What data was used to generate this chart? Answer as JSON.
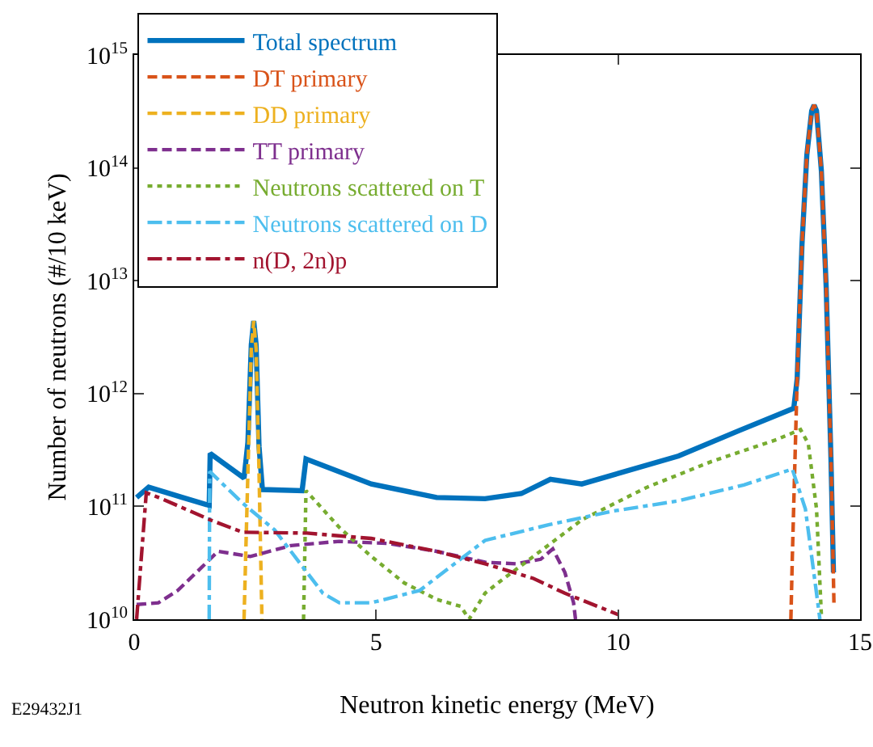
{
  "chart_data": {
    "type": "line",
    "xlabel": "Neutron kinetic energy (MeV)",
    "ylabel": "Number of neutrons (#/10 keV)",
    "xlim": [
      0,
      15
    ],
    "xticks": [
      0,
      5,
      10,
      15
    ],
    "ylim": [
      10000000000.0,
      1000000000000000.0
    ],
    "yticks": [
      {
        "value": 10000000000.0,
        "label": "10$^{10}$"
      },
      {
        "value": 100000000000.0,
        "label": "10$^{11}$"
      },
      {
        "value": 1000000000000.0,
        "label": "10$^{12}$"
      },
      {
        "value": 10000000000000.0,
        "label": "10$^{13}$"
      },
      {
        "value": 100000000000000.0,
        "label": "10$^{14}$"
      },
      {
        "value": 1000000000000000.0,
        "label": "10$^{15}$"
      }
    ],
    "log": "y",
    "grid": false,
    "legend": "top left",
    "marker": "none",
    "annotations": [
      "E29432J1"
    ],
    "series": [
      {
        "name": "Total spectrum",
        "color": "#0072bd",
        "line_style": "solid",
        "x": [
          0.05,
          0.3,
          1.0,
          1.55,
          1.57,
          2.27,
          2.35,
          2.42,
          2.47,
          2.52,
          2.58,
          2.65,
          3.47,
          3.55,
          4.9,
          6.25,
          7.25,
          8.0,
          8.6,
          9.25,
          11.25,
          12.5,
          13.63,
          13.7,
          13.8,
          13.9,
          14.0,
          14.05,
          14.1,
          14.2,
          14.3,
          14.4,
          14.45
        ],
        "values": [
          120000000000.0,
          148000000000.0,
          120000000000.0,
          102000000000.0,
          295000000000.0,
          178000000000.0,
          370000000000.0,
          2700000000000.0,
          4400000000000.0,
          2700000000000.0,
          340000000000.0,
          141000000000.0,
          138000000000.0,
          263000000000.0,
          158000000000.0,
          120000000000.0,
          117000000000.0,
          130000000000.0,
          174000000000.0,
          158000000000.0,
          280000000000.0,
          470000000000.0,
          740000000000.0,
          1350000000000.0,
          21000000000000.0,
          130000000000000.0,
          320000000000000.0,
          360000000000000.0,
          320000000000000.0,
          95000000000000.0,
          8700000000000.0,
          250000000000.0,
          26000000000.0
        ]
      },
      {
        "name": "DT primary",
        "color": "#d95319",
        "line_style": "dashed",
        "x": [
          13.57,
          13.6,
          13.7,
          13.8,
          13.9,
          14.0,
          14.05,
          14.1,
          14.2,
          14.3,
          14.4,
          14.46
        ],
        "values": [
          10000000000.0,
          35000000000.0,
          1350000000000.0,
          21000000000000.0,
          130000000000000.0,
          320000000000000.0,
          360000000000000.0,
          320000000000000.0,
          95000000000000.0,
          8700000000000.0,
          250000000000.0,
          14000000000.0
        ]
      },
      {
        "name": "DD primary",
        "color": "#edb120",
        "line_style": "dashed",
        "x": [
          2.27,
          2.35,
          2.42,
          2.47,
          2.52,
          2.58,
          2.64
        ],
        "values": [
          10000000000.0,
          200000000000.0,
          2500000000000.0,
          4400000000000.0,
          2500000000000.0,
          200000000000.0,
          10000000000.0
        ]
      },
      {
        "name": "TT primary",
        "color": "#7e2f8e",
        "line_style": "dashed",
        "x": [
          0.05,
          0.5,
          0.9,
          1.4,
          1.73,
          2.4,
          3.24,
          4.24,
          5.25,
          6.25,
          7.25,
          7.9,
          8.4,
          8.65,
          8.9,
          9.08,
          9.12
        ],
        "values": [
          13500000000.0,
          14000000000.0,
          18000000000.0,
          29000000000.0,
          40000000000.0,
          36000000000.0,
          45000000000.0,
          49000000000.0,
          47000000000.0,
          40000000000.0,
          32000000000.0,
          31000000000.0,
          34000000000.0,
          42000000000.0,
          26000000000.0,
          14000000000.0,
          10000000000.0
        ]
      },
      {
        "name": "Neutrons scattered on T",
        "color": "#77ac30",
        "line_style": "dotted",
        "x": [
          3.5,
          3.55,
          4.24,
          4.9,
          5.58,
          6.25,
          6.75,
          6.92,
          7.25,
          7.58,
          8.25,
          9.25,
          10.6,
          11.93,
          13.27,
          13.77,
          13.93,
          14.1,
          14.2
        ],
        "values": [
          10000000000.0,
          138000000000.0,
          65000000000.0,
          36000000000.0,
          21000000000.0,
          15000000000.0,
          13000000000.0,
          10000000000.0,
          17000000000.0,
          22000000000.0,
          36000000000.0,
          76000000000.0,
          148000000000.0,
          250000000000.0,
          390000000000.0,
          480000000000.0,
          360000000000.0,
          95000000000.0,
          11000000000.0
        ]
      },
      {
        "name": "Neutrons scattered on D",
        "color": "#4dbeee",
        "line_style": "dashdot",
        "x": [
          1.55,
          1.56,
          2.24,
          2.9,
          3.57,
          3.9,
          4.24,
          4.9,
          5.9,
          7.25,
          8.58,
          9.9,
          11.25,
          12.6,
          13.6,
          13.87,
          14.1,
          14.17
        ],
        "values": [
          10000000000.0,
          204000000000.0,
          107000000000.0,
          62000000000.0,
          26000000000.0,
          17000000000.0,
          14000000000.0,
          14000000000.0,
          18000000000.0,
          50000000000.0,
          69000000000.0,
          91000000000.0,
          112000000000.0,
          155000000000.0,
          214000000000.0,
          95000000000.0,
          17000000000.0,
          10000000000.0
        ]
      },
      {
        "name": "n(D, 2n)p",
        "color": "#a2142f",
        "line_style": "dashdot",
        "x": [
          0.05,
          0.25,
          0.57,
          1.57,
          2.24,
          3.57,
          4.9,
          6.25,
          7.25,
          8.25,
          8.9,
          10.0
        ],
        "values": [
          10000000000.0,
          132000000000.0,
          117000000000.0,
          76000000000.0,
          59000000000.0,
          58000000000.0,
          52000000000.0,
          40000000000.0,
          31000000000.0,
          23000000000.0,
          17000000000.0,
          11000000000.0
        ]
      }
    ]
  }
}
